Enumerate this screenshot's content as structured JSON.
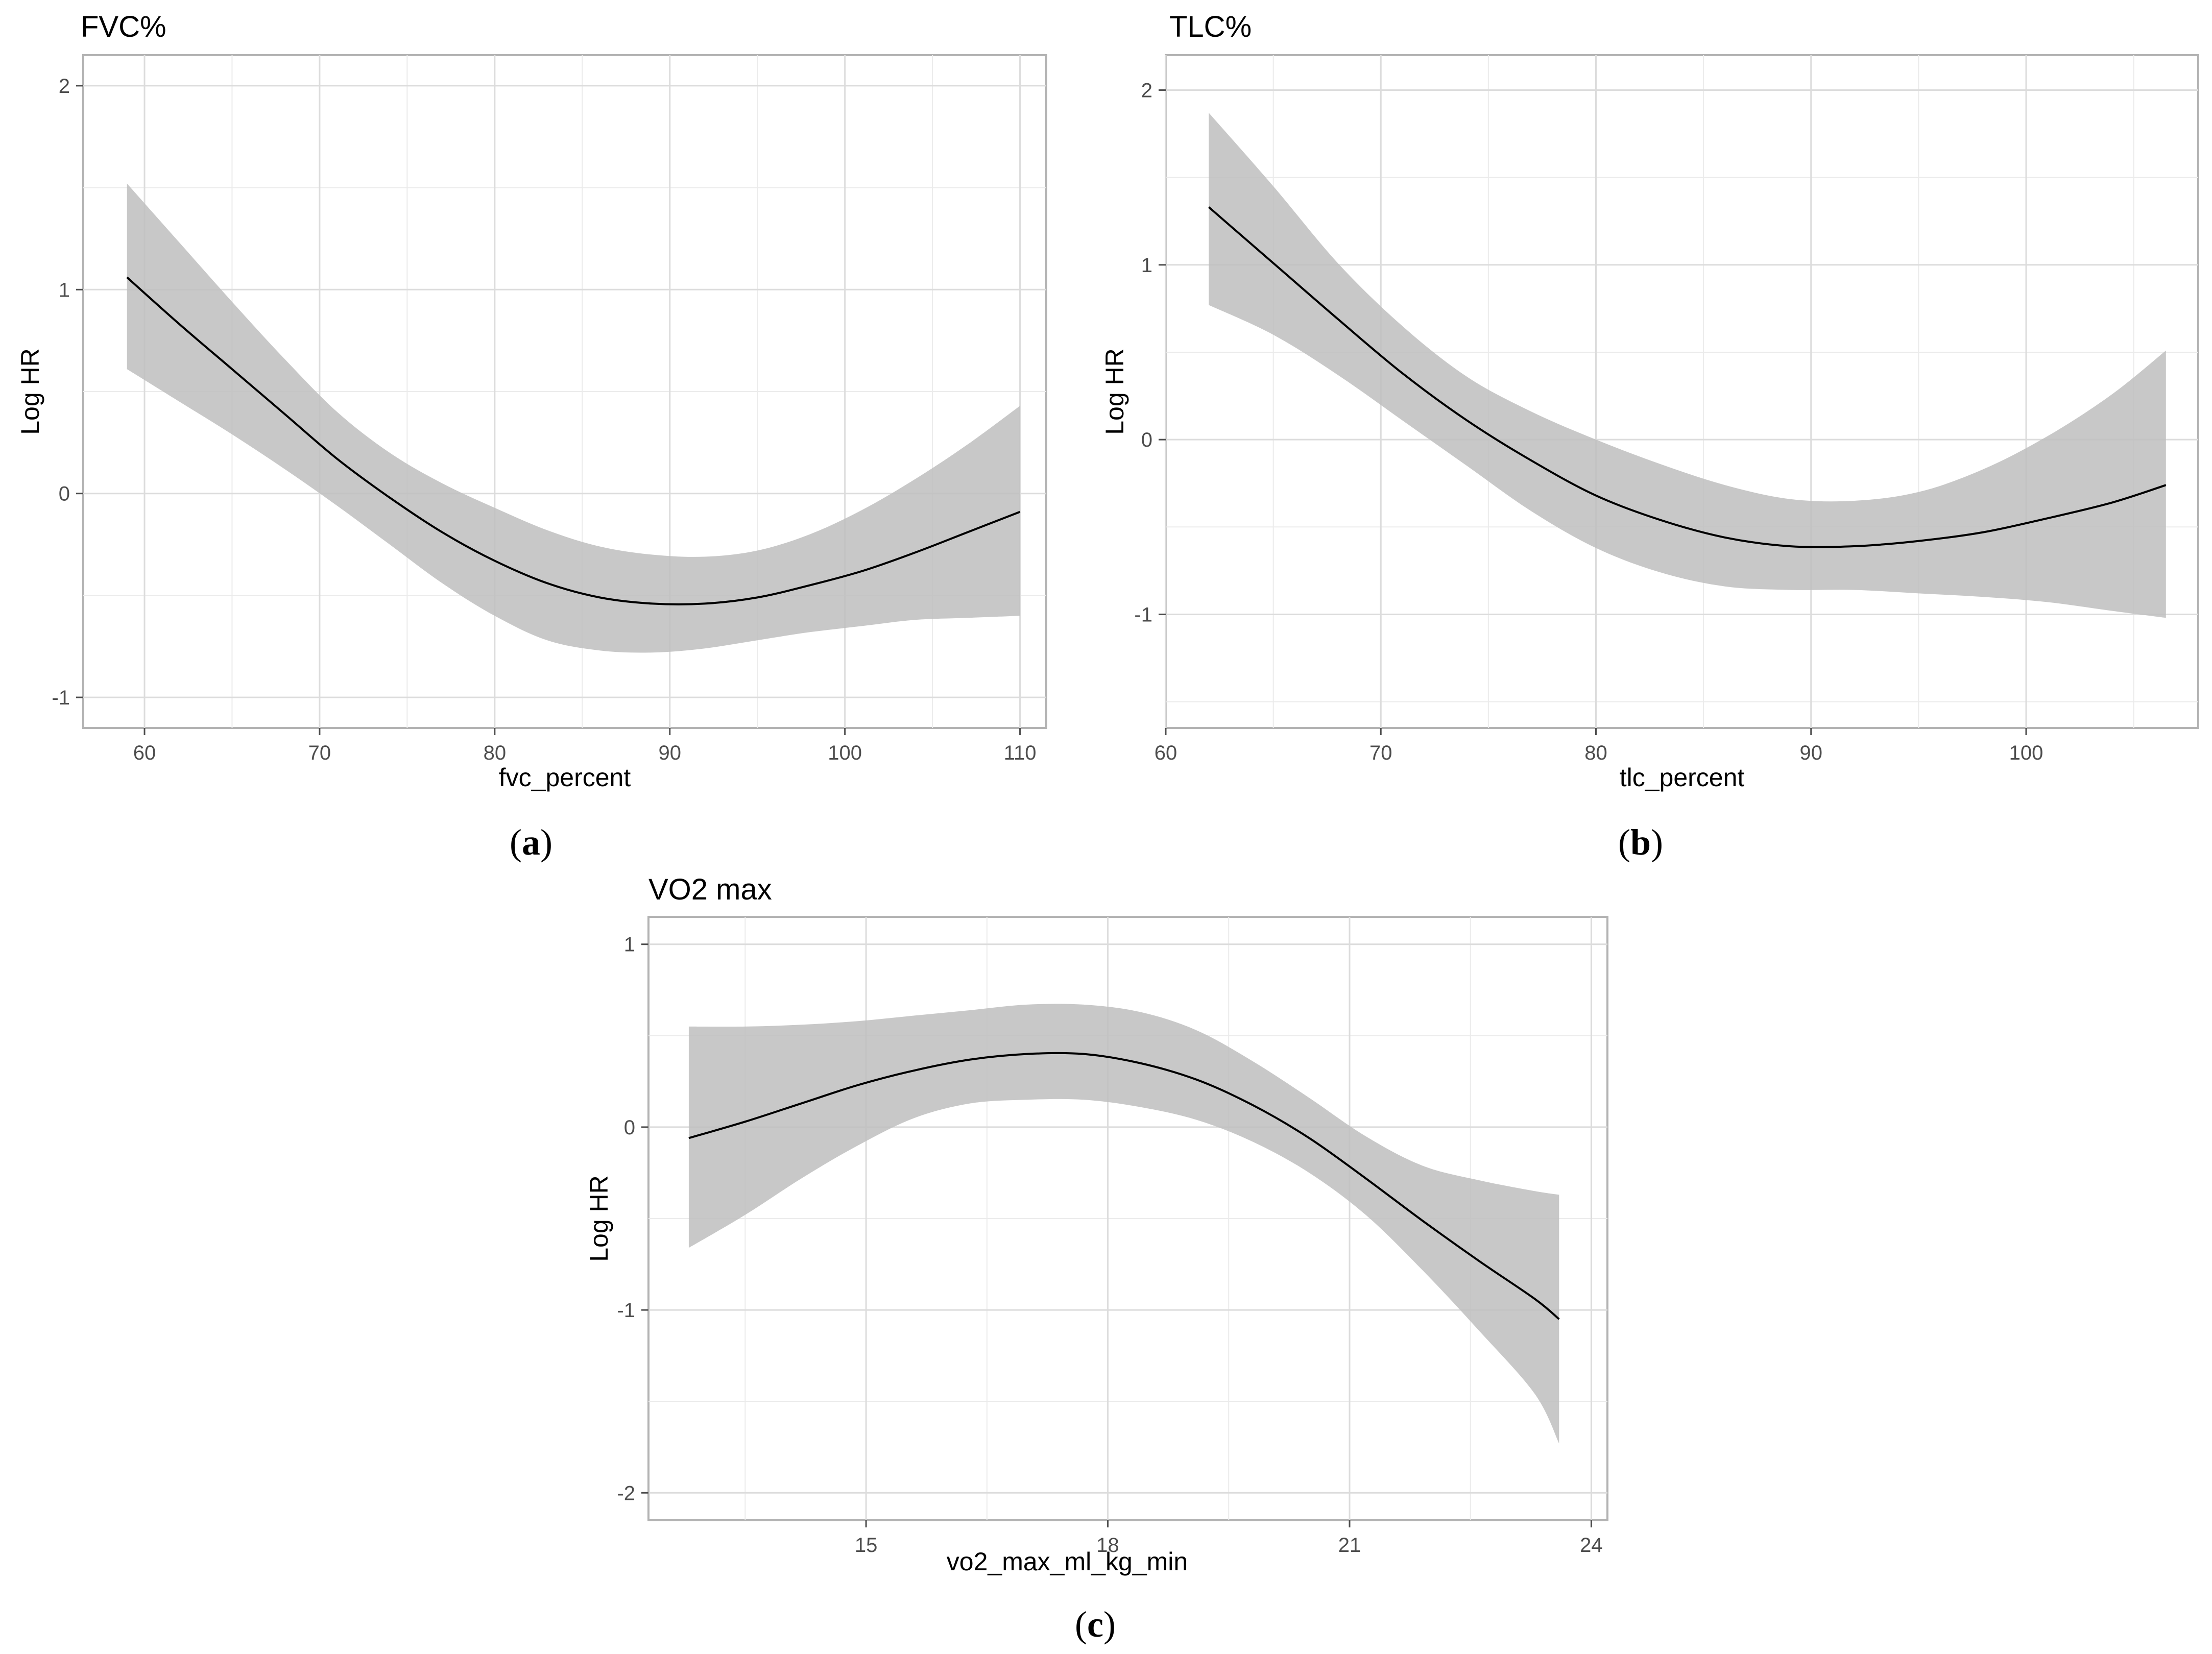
{
  "chart_data": [
    {
      "type": "line",
      "panel_label": "a",
      "title": "FVC%",
      "xlabel": "fvc_percent",
      "ylabel": "Log HR",
      "xlim": [
        56.5,
        111.5
      ],
      "ylim": [
        -1.15,
        2.15
      ],
      "x_ticks": [
        60,
        70,
        80,
        90,
        100,
        110
      ],
      "y_ticks": [
        -1,
        0,
        1,
        2
      ],
      "grid": true,
      "series": [
        {
          "x": [
            59,
            62,
            65,
            68,
            71,
            74,
            77,
            80,
            83,
            86,
            89,
            92,
            95,
            98,
            101,
            104,
            107,
            110
          ],
          "y": [
            1.06,
            0.83,
            0.61,
            0.39,
            0.17,
            -0.02,
            -0.19,
            -0.33,
            -0.44,
            -0.51,
            -0.54,
            -0.54,
            -0.51,
            -0.45,
            -0.38,
            -0.29,
            -0.19,
            -0.09
          ],
          "lower": [
            0.61,
            0.45,
            0.29,
            0.12,
            -0.06,
            -0.25,
            -0.44,
            -0.6,
            -0.72,
            -0.77,
            -0.78,
            -0.76,
            -0.72,
            -0.68,
            -0.65,
            -0.62,
            -0.61,
            -0.6
          ],
          "upper": [
            1.52,
            1.23,
            0.94,
            0.66,
            0.4,
            0.2,
            0.05,
            -0.07,
            -0.18,
            -0.26,
            -0.3,
            -0.31,
            -0.28,
            -0.2,
            -0.08,
            0.07,
            0.24,
            0.43
          ]
        }
      ]
    },
    {
      "type": "line",
      "panel_label": "b",
      "title": "TLC%",
      "xlabel": "tlc_percent",
      "ylabel": "Log HR",
      "xlim": [
        60,
        108
      ],
      "ylim": [
        -1.65,
        2.2
      ],
      "x_ticks": [
        60,
        70,
        80,
        90,
        100
      ],
      "y_ticks": [
        -1,
        0,
        1,
        2
      ],
      "grid": true,
      "series": [
        {
          "x": [
            62,
            65,
            68,
            71,
            74,
            77,
            80,
            83,
            86,
            89,
            92,
            95,
            98,
            101,
            104,
            106.5
          ],
          "y": [
            1.33,
            1.01,
            0.69,
            0.38,
            0.11,
            -0.12,
            -0.32,
            -0.46,
            -0.56,
            -0.61,
            -0.61,
            -0.58,
            -0.53,
            -0.45,
            -0.36,
            -0.26
          ],
          "lower": [
            0.77,
            0.6,
            0.37,
            0.11,
            -0.15,
            -0.41,
            -0.62,
            -0.76,
            -0.84,
            -0.86,
            -0.86,
            -0.88,
            -0.9,
            -0.93,
            -0.98,
            -1.02
          ],
          "upper": [
            1.87,
            1.45,
            1.01,
            0.65,
            0.36,
            0.16,
            0.0,
            -0.14,
            -0.26,
            -0.34,
            -0.35,
            -0.3,
            -0.17,
            0.02,
            0.26,
            0.51
          ]
        }
      ]
    },
    {
      "type": "line",
      "panel_label": "c",
      "title": "VO2 max",
      "xlabel": "vo2_max_ml_kg_min",
      "ylabel": "Log HR",
      "xlim": [
        12.3,
        24.2
      ],
      "ylim": [
        -2.15,
        1.15
      ],
      "x_ticks": [
        15,
        18,
        21,
        24
      ],
      "y_ticks": [
        -2,
        -1,
        0,
        1
      ],
      "grid": true,
      "series": [
        {
          "x": [
            12.8,
            13.5,
            14.2,
            14.9,
            15.6,
            16.3,
            17.0,
            17.7,
            18.4,
            19.1,
            19.8,
            20.5,
            21.2,
            21.9,
            22.6,
            23.3,
            23.6
          ],
          "y": [
            -0.06,
            0.03,
            0.13,
            0.23,
            0.31,
            0.37,
            0.4,
            0.4,
            0.35,
            0.26,
            0.12,
            -0.06,
            -0.28,
            -0.51,
            -0.73,
            -0.94,
            -1.05
          ],
          "lower": [
            -0.66,
            -0.48,
            -0.28,
            -0.1,
            0.05,
            0.13,
            0.15,
            0.15,
            0.11,
            0.04,
            -0.08,
            -0.25,
            -0.48,
            -0.78,
            -1.11,
            -1.46,
            -1.73
          ],
          "upper": [
            0.55,
            0.55,
            0.56,
            0.58,
            0.61,
            0.64,
            0.67,
            0.67,
            0.63,
            0.53,
            0.36,
            0.16,
            -0.05,
            -0.21,
            -0.29,
            -0.35,
            -0.37
          ]
        }
      ]
    }
  ]
}
